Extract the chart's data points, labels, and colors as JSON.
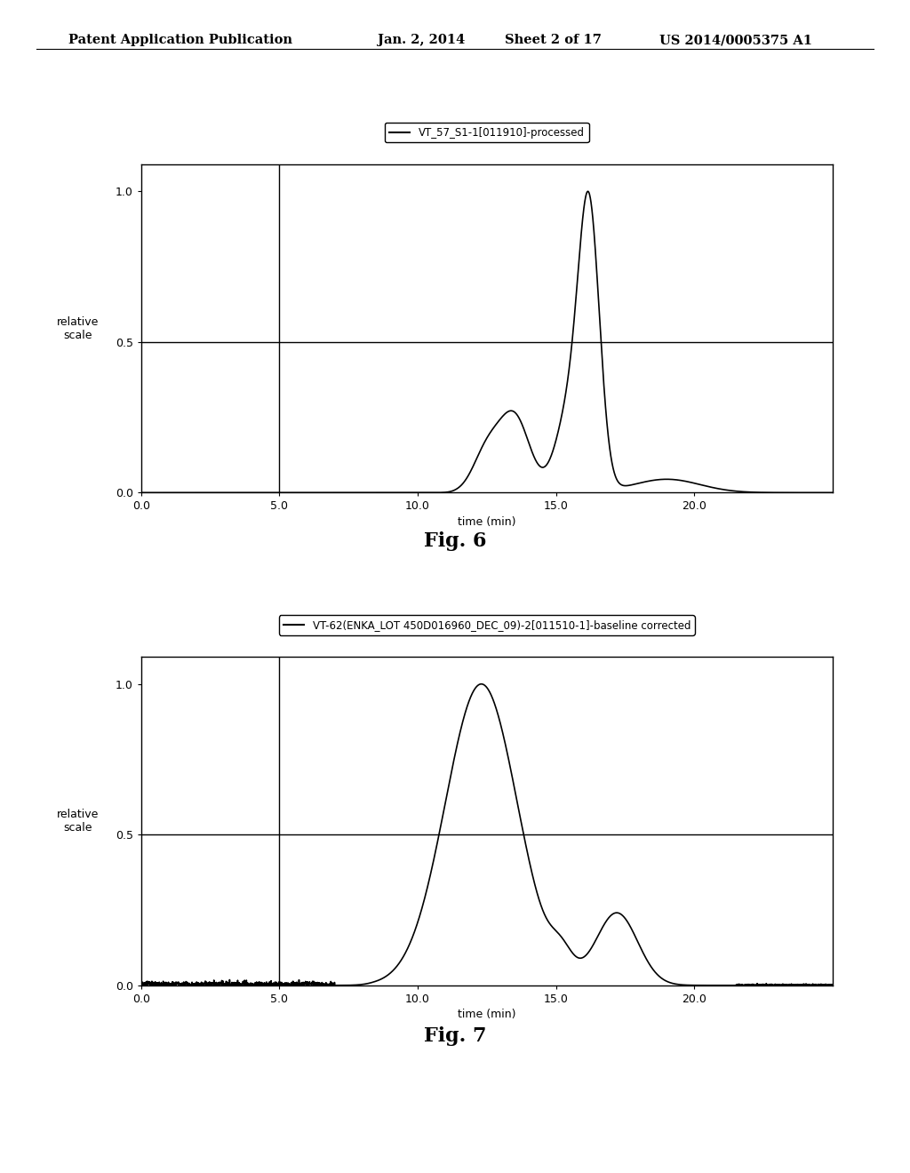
{
  "background_color": "#ffffff",
  "header_text": "Patent Application Publication",
  "header_date": "Jan. 2, 2014",
  "header_sheet": "Sheet 2 of 17",
  "header_patent": "US 2014/0005375 A1",
  "fig6_label": "Fig. 6",
  "fig7_label": "Fig. 7",
  "fig6_legend": "VT_57_S1-1[011910]-processed",
  "fig7_legend": "VT-62(ENKA_LOT 450D016960_DEC_09)-2[011510-1]-baseline corrected",
  "xlabel": "time (min)",
  "ylabel": "relative\nscale",
  "xlim": [
    0.0,
    25.0
  ],
  "ylim": [
    0.0,
    1.09
  ],
  "xticks": [
    0.0,
    5.0,
    10.0,
    15.0,
    20.0
  ],
  "yticks": [
    0.0,
    0.5,
    1.0
  ],
  "ytick_labels": [
    "0.0",
    "0.5",
    "1.0"
  ],
  "vline_x": 5.0,
  "hline_y": 0.5,
  "line_color": "#000000",
  "line_width": 1.2
}
